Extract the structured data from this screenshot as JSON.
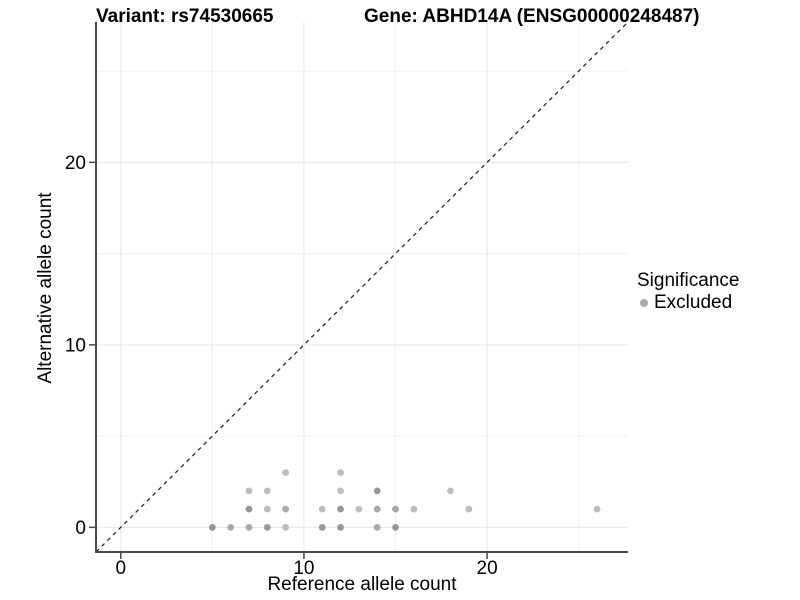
{
  "figure": {
    "title_left": "Variant: rs74530665",
    "title_right": "Gene: ABHD14A (ENSG00000248487)"
  },
  "chart_data": {
    "type": "scatter",
    "title": "Variant: rs74530665 — Gene: ABHD14A (ENSG00000248487)",
    "xlabel": "Reference allele count",
    "ylabel": "Alternative allele count",
    "xlim": [
      -1.35,
      27.69
    ],
    "ylim": [
      -1.35,
      27.69
    ],
    "x_major_ticks": [
      0,
      10,
      20
    ],
    "y_major_ticks": [
      0,
      10,
      20
    ],
    "x_minor_gridlines": [
      5,
      15,
      25
    ],
    "y_minor_gridlines": [
      5,
      15,
      25
    ],
    "grid": true,
    "identity_line": {
      "slope": 1,
      "intercept": 0,
      "style": "dashed"
    },
    "legend": {
      "title": "Significance",
      "position": "right",
      "items": [
        {
          "label": "Excluded",
          "marker": "circle",
          "marker_color": "#ababab"
        }
      ]
    },
    "series": [
      {
        "name": "Excluded",
        "marker": "circle",
        "points": [
          {
            "x": 5,
            "y": 0,
            "shade": "dark"
          },
          {
            "x": 6,
            "y": 0,
            "shade": "medium"
          },
          {
            "x": 7,
            "y": 0,
            "shade": "medium"
          },
          {
            "x": 8,
            "y": 0,
            "shade": "dark"
          },
          {
            "x": 9,
            "y": 0,
            "shade": "light"
          },
          {
            "x": 11,
            "y": 0,
            "shade": "dark"
          },
          {
            "x": 12,
            "y": 0,
            "shade": "dark"
          },
          {
            "x": 14,
            "y": 0,
            "shade": "medium"
          },
          {
            "x": 15,
            "y": 0,
            "shade": "dark"
          },
          {
            "x": 7,
            "y": 1,
            "shade": "dark"
          },
          {
            "x": 8,
            "y": 1,
            "shade": "light"
          },
          {
            "x": 9,
            "y": 1,
            "shade": "medium"
          },
          {
            "x": 11,
            "y": 1,
            "shade": "light"
          },
          {
            "x": 12,
            "y": 1,
            "shade": "dark"
          },
          {
            "x": 13,
            "y": 1,
            "shade": "light"
          },
          {
            "x": 14,
            "y": 1,
            "shade": "medium"
          },
          {
            "x": 15,
            "y": 1,
            "shade": "medium"
          },
          {
            "x": 16,
            "y": 1,
            "shade": "light"
          },
          {
            "x": 19,
            "y": 1,
            "shade": "light"
          },
          {
            "x": 26,
            "y": 1,
            "shade": "light"
          },
          {
            "x": 7,
            "y": 2,
            "shade": "light"
          },
          {
            "x": 8,
            "y": 2,
            "shade": "light"
          },
          {
            "x": 12,
            "y": 2,
            "shade": "light"
          },
          {
            "x": 14,
            "y": 2,
            "shade": "dark"
          },
          {
            "x": 18,
            "y": 2,
            "shade": "light"
          },
          {
            "x": 9,
            "y": 3,
            "shade": "light"
          },
          {
            "x": 12,
            "y": 3,
            "shade": "light"
          }
        ]
      }
    ],
    "colors": {
      "point_light": "#bdbdbd",
      "point_medium": "#a9a9a9",
      "point_dark": "#979797",
      "grid_major": "#e6e6e6",
      "grid_minor": "#f0f0f0",
      "axis_line": "#4a4a4a",
      "identity_line": "#1a1a1a",
      "legend_marker": "#ababab",
      "text": "#000000",
      "background": "#ffffff"
    }
  }
}
